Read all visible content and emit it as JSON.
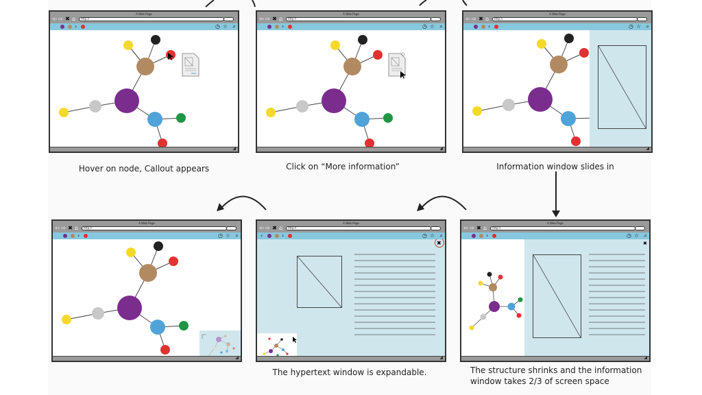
{
  "browser": {
    "window_title": "A Web Page",
    "url_text": "http://"
  },
  "captions": {
    "c1": "Hover on node, Callout appears",
    "c2": "Click on “More information”",
    "c3": "Information window slides in",
    "c4": "",
    "c5": "The hypertext window is expandable.",
    "c6_line1": "The structure shrinks and the information",
    "c6_line2": "window takes 2/3 of screen space"
  },
  "icons": {
    "nav": [
      "arrow-left-icon",
      "arrow-right-icon",
      "close-icon",
      "home-icon"
    ],
    "toolbar_right": [
      "clock-icon",
      "star-icon",
      "search-icon"
    ],
    "panel_close": "close-icon",
    "document": "document-icon",
    "cursor": "pointer-cursor-icon",
    "flow_arrows": [
      "curved-arrow-icon",
      "down-arrow-icon"
    ]
  },
  "colors": {
    "node_purple": "#7b2d8e",
    "node_brown": "#b28a62",
    "node_blue": "#4fa3d8",
    "node_gray": "#c8c8c8",
    "node_yellow": "#f5d92a",
    "node_red": "#e23131",
    "node_black": "#222222",
    "node_green": "#1f9645",
    "panel_blue": "#cfe6ed",
    "tabbar_blue": "#87c8de",
    "chrome_gray": "#9a9a9a"
  }
}
